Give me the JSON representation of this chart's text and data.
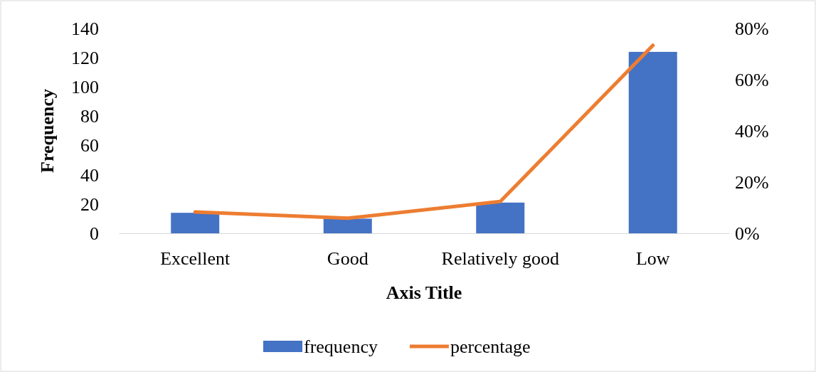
{
  "chart_data": {
    "type": "bar",
    "categories": [
      "Excellent",
      "Good",
      "Relatively good",
      "Low"
    ],
    "xlabel": "Axis Title",
    "ylabel": "Frequency",
    "ylim": [
      0,
      140
    ],
    "yticks": [
      0,
      20,
      40,
      60,
      80,
      100,
      120,
      140
    ],
    "y2lim": [
      0,
      80
    ],
    "y2ticks": [
      {
        "value": 0,
        "label": "0%"
      },
      {
        "value": 20,
        "label": "20%"
      },
      {
        "value": 40,
        "label": "40%"
      },
      {
        "value": 60,
        "label": "60%"
      },
      {
        "value": 80,
        "label": "80%"
      }
    ],
    "series": [
      {
        "name": "frequency",
        "color": "#4472c4",
        "values": [
          14,
          10,
          21,
          124
        ]
      },
      {
        "name": "percentage",
        "type": "line",
        "axis": "y2",
        "color": "#ed7d31",
        "values": [
          8.3,
          5.9,
          12.4,
          73.4
        ]
      }
    ],
    "grid": false,
    "legend": "bottom"
  }
}
